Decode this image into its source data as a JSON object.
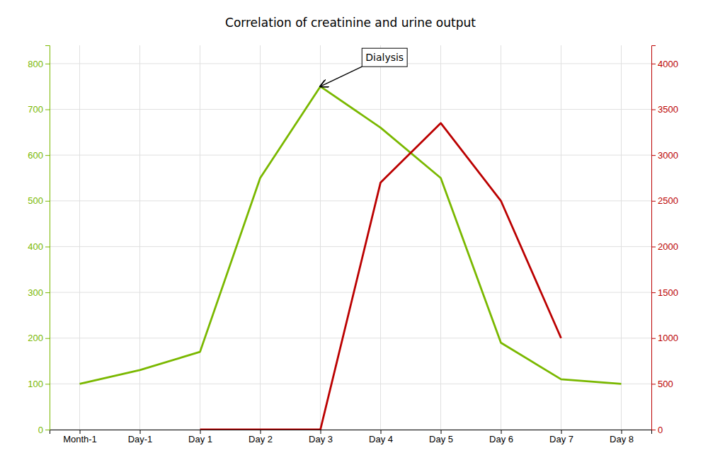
{
  "chart_data": {
    "type": "line",
    "title": "Correlation of creatinine and urine output",
    "categories": [
      "Month-1",
      "Day-1",
      "Day 1",
      "Day 2",
      "Day 3",
      "Day 4",
      "Day 5",
      "Day 6",
      "Day 7",
      "Day 8"
    ],
    "series": [
      {
        "color": "#7ab800",
        "values": [
          100,
          130,
          170,
          550,
          750,
          660,
          550,
          190,
          110,
          100
        ]
      },
      {
        "color": "#bb0000",
        "axis": "y2",
        "values": [
          null,
          null,
          0,
          0,
          0,
          2700,
          3350,
          2500,
          1000,
          null
        ]
      }
    ],
    "ylim": [
      0,
      840
    ],
    "yticks": [
      0,
      100,
      200,
      300,
      400,
      500,
      600,
      700,
      800
    ],
    "y2lim": [
      0,
      4200
    ],
    "y2ticks": [
      0,
      500,
      1000,
      1500,
      2000,
      2500,
      3000,
      3500,
      4000
    ],
    "grid": true,
    "annotations": [
      {
        "text": "Dialysis",
        "x": "Day 3",
        "y": 750
      }
    ]
  }
}
